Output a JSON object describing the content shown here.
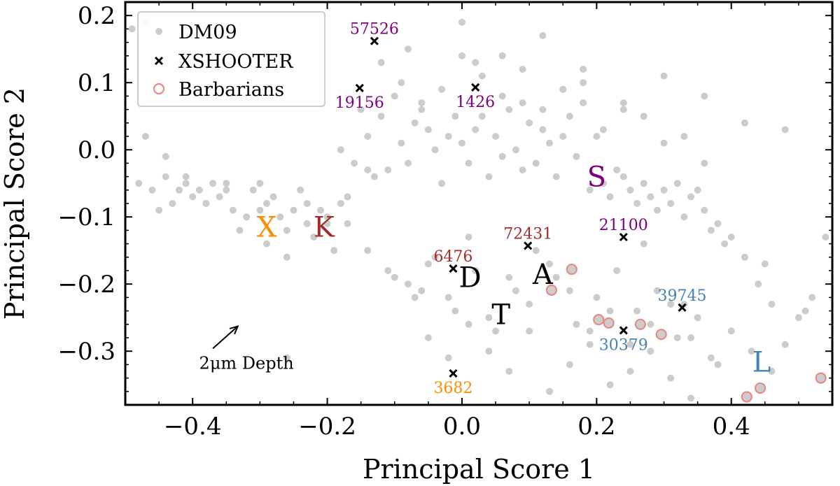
{
  "chart_data": {
    "type": "scatter",
    "xlabel": "Principal Score 1",
    "ylabel": "Principal Score 2",
    "xlim": [
      -0.5,
      0.55
    ],
    "ylim": [
      -0.38,
      0.22
    ],
    "xticks": [
      -0.4,
      -0.2,
      0.0,
      0.2,
      0.4
    ],
    "xtick_labels": [
      "−0.4",
      "−0.2",
      "0.0",
      "0.2",
      "0.4"
    ],
    "yticks": [
      -0.3,
      -0.2,
      -0.1,
      0.0,
      0.1,
      0.2
    ],
    "ytick_labels": [
      "−0.3",
      "−0.2",
      "−0.1",
      "0.0",
      "0.1",
      "0.2"
    ],
    "legend": {
      "position": "upper-left",
      "entries": [
        "DM09",
        "XSHOOTER",
        "Barbarians"
      ]
    },
    "series": [
      {
        "name": "DM09",
        "marker": "dot",
        "color": "#cccccc",
        "x": [
          -0.49,
          -0.48,
          -0.47,
          -0.46,
          -0.45,
          -0.44,
          -0.43,
          -0.42,
          -0.41,
          -0.4,
          -0.39,
          -0.38,
          -0.37,
          -0.36,
          -0.35,
          -0.34,
          -0.33,
          -0.32,
          -0.31,
          -0.3,
          -0.29,
          -0.28,
          -0.27,
          -0.26,
          -0.25,
          -0.24,
          -0.23,
          -0.22,
          -0.21,
          -0.2,
          -0.19,
          -0.18,
          -0.17,
          -0.16,
          -0.15,
          -0.14,
          -0.13,
          -0.12,
          -0.11,
          -0.1,
          -0.09,
          -0.08,
          -0.07,
          -0.06,
          -0.05,
          -0.04,
          -0.03,
          -0.02,
          -0.01,
          0.0,
          0.01,
          0.02,
          0.03,
          0.04,
          0.05,
          0.06,
          0.07,
          0.08,
          0.09,
          0.1,
          0.11,
          0.12,
          0.13,
          0.14,
          0.15,
          0.16,
          0.17,
          0.18,
          0.19,
          0.2,
          0.21,
          0.22,
          0.23,
          0.24,
          0.25,
          0.26,
          0.27,
          0.28,
          0.29,
          0.3,
          0.31,
          0.32,
          0.33,
          0.34,
          0.35,
          0.36,
          0.37,
          0.38,
          0.39,
          0.4,
          0.42,
          0.44,
          0.46,
          0.48,
          0.5,
          0.52,
          -0.47,
          -0.44,
          -0.41,
          -0.38,
          -0.35,
          -0.32,
          -0.29,
          -0.26,
          -0.23,
          -0.2,
          -0.17,
          -0.14,
          -0.11,
          -0.08,
          -0.05,
          -0.02,
          0.01,
          0.04,
          0.07,
          0.1,
          0.13,
          0.16,
          0.19,
          0.22,
          0.25,
          0.28,
          0.31,
          0.34,
          0.37,
          0.4,
          0.43,
          0.46,
          -0.12,
          -0.09,
          -0.06,
          -0.03,
          0.0,
          0.03,
          0.06,
          0.09,
          0.12,
          0.15,
          0.18,
          0.21,
          0.24,
          0.27,
          0.3,
          0.33,
          0.36,
          -0.1,
          -0.07,
          -0.04,
          -0.01,
          0.02,
          0.05,
          0.08,
          0.11,
          0.14,
          0.17,
          0.2,
          0.23,
          0.26,
          0.29,
          0.32,
          0.35,
          0.38,
          -0.05,
          -0.02,
          0.01,
          0.04,
          0.07,
          0.1,
          0.13,
          0.16,
          0.19,
          0.22,
          0.25,
          0.28,
          0.31,
          0.34,
          -0.08,
          0.0,
          0.06,
          0.12,
          0.18,
          0.24,
          0.3,
          0.36,
          0.42,
          0.48,
          0.54,
          -0.3,
          -0.26,
          -0.18,
          -0.14,
          -0.06,
          0.02,
          0.09,
          0.15,
          0.27,
          0.33,
          0.45,
          0.51
        ],
        "y": [
          0.18,
          -0.05,
          0.02,
          -0.06,
          -0.09,
          -0.04,
          -0.08,
          -0.06,
          -0.05,
          -0.07,
          -0.06,
          -0.08,
          -0.05,
          -0.07,
          -0.06,
          -0.09,
          -0.12,
          -0.1,
          -0.06,
          -0.05,
          -0.08,
          -0.07,
          -0.1,
          -0.16,
          -0.09,
          -0.06,
          -0.11,
          -0.13,
          -0.09,
          -0.1,
          -0.15,
          -0.08,
          -0.11,
          -0.02,
          0.06,
          0.02,
          -0.04,
          0.05,
          -0.03,
          0.08,
          0.01,
          -0.02,
          0.04,
          0.06,
          0.03,
          0.0,
          -0.05,
          0.02,
          0.05,
          0.01,
          -0.02,
          0.03,
          0.05,
          -0.04,
          0.02,
          -0.01,
          0.06,
          0.0,
          -0.03,
          0.04,
          -0.02,
          0.03,
          0.01,
          -0.04,
          0.02,
          0.05,
          -0.01,
          0.07,
          -0.06,
          0.02,
          -0.05,
          -0.07,
          -0.03,
          -0.04,
          -0.06,
          -0.08,
          -0.05,
          -0.07,
          -0.09,
          -0.06,
          -0.08,
          -0.05,
          -0.1,
          -0.07,
          -0.06,
          -0.09,
          -0.12,
          -0.11,
          -0.14,
          -0.13,
          -0.16,
          -0.2,
          -0.23,
          -0.29,
          -0.25,
          -0.22,
          0.19,
          -0.01,
          -0.04,
          -0.08,
          -0.05,
          -0.1,
          -0.14,
          -0.12,
          -0.08,
          -0.11,
          -0.07,
          -0.15,
          -0.18,
          -0.2,
          -0.17,
          -0.22,
          -0.13,
          -0.25,
          -0.19,
          -0.23,
          -0.17,
          -0.21,
          -0.27,
          -0.24,
          -0.29,
          -0.26,
          -0.23,
          -0.28,
          -0.31,
          -0.27,
          -0.3,
          -0.33,
          0.13,
          0.1,
          0.07,
          0.09,
          0.14,
          0.11,
          0.08,
          0.12,
          0.06,
          0.09,
          0.1,
          0.03,
          0.07,
          0.05,
          0.01,
          0.02,
          -0.02,
          -0.19,
          -0.22,
          -0.16,
          -0.24,
          -0.18,
          -0.27,
          -0.21,
          -0.15,
          -0.19,
          -0.26,
          -0.22,
          -0.18,
          -0.24,
          -0.21,
          -0.28,
          -0.25,
          -0.32,
          -0.28,
          -0.31,
          -0.26,
          -0.3,
          -0.33,
          -0.27,
          -0.36,
          -0.32,
          -0.29,
          -0.35,
          -0.33,
          -0.3,
          -0.34,
          -0.37,
          0.15,
          0.19,
          0.14,
          0.17,
          0.12,
          0.06,
          0.11,
          0.08,
          0.04,
          0.03,
          -0.13,
          -0.09,
          -0.31,
          0.0,
          -0.03,
          -0.21,
          0.13,
          0.07,
          0.09,
          -0.14,
          -0.23,
          -0.17,
          -0.24
        ]
      },
      {
        "name": "XSHOOTER",
        "marker": "x",
        "color": "#000000",
        "points": [
          {
            "id": "57526",
            "x": -0.13,
            "y": 0.162
          },
          {
            "id": "19156",
            "x": -0.152,
            "y": 0.092
          },
          {
            "id": "1426",
            "x": 0.02,
            "y": 0.093
          },
          {
            "id": "72431",
            "x": 0.098,
            "y": -0.143
          },
          {
            "id": "6476",
            "x": -0.013,
            "y": -0.177
          },
          {
            "id": "21100",
            "x": 0.24,
            "y": -0.13
          },
          {
            "id": "39745",
            "x": 0.327,
            "y": -0.235
          },
          {
            "id": "30379",
            "x": 0.24,
            "y": -0.269
          },
          {
            "id": "3682",
            "x": -0.013,
            "y": -0.333
          }
        ]
      },
      {
        "name": "Barbarians",
        "marker": "circle",
        "color": "#e88a86",
        "x": [
          0.163,
          0.133,
          0.203,
          0.218,
          0.265,
          0.296,
          0.443,
          0.423,
          0.533
        ],
        "y": [
          -0.178,
          -0.209,
          -0.253,
          -0.258,
          -0.26,
          -0.275,
          -0.355,
          -0.368,
          -0.34
        ]
      }
    ],
    "point_labels": [
      {
        "text": "57526",
        "x": -0.13,
        "y": 0.162,
        "color": "#800080",
        "anchor": "above"
      },
      {
        "text": "19156",
        "x": -0.152,
        "y": 0.092,
        "color": "#800080",
        "anchor": "below"
      },
      {
        "text": "1426",
        "x": 0.02,
        "y": 0.093,
        "color": "#800080",
        "anchor": "below"
      },
      {
        "text": "72431",
        "x": 0.098,
        "y": -0.143,
        "color": "#a52a2a",
        "anchor": "above"
      },
      {
        "text": "6476",
        "x": -0.013,
        "y": -0.177,
        "color": "#a52a2a",
        "anchor": "above"
      },
      {
        "text": "21100",
        "x": 0.24,
        "y": -0.13,
        "color": "#800080",
        "anchor": "above"
      },
      {
        "text": "39745",
        "x": 0.327,
        "y": -0.235,
        "color": "#4682b4",
        "anchor": "above"
      },
      {
        "text": "30379",
        "x": 0.24,
        "y": -0.269,
        "color": "#4682b4",
        "anchor": "below"
      },
      {
        "text": "3682",
        "x": -0.013,
        "y": -0.333,
        "color": "#ff8c00",
        "anchor": "below"
      }
    ],
    "class_labels": [
      {
        "text": "X",
        "x": -0.29,
        "y": -0.115,
        "color": "#ff8c00"
      },
      {
        "text": "K",
        "x": -0.205,
        "y": -0.115,
        "color": "#a52a2a"
      },
      {
        "text": "D",
        "x": 0.012,
        "y": -0.19,
        "color": "#000000"
      },
      {
        "text": "A",
        "x": 0.12,
        "y": -0.185,
        "color": "#000000"
      },
      {
        "text": "T",
        "x": 0.058,
        "y": -0.245,
        "color": "#000000"
      },
      {
        "text": "S",
        "x": 0.2,
        "y": -0.04,
        "color": "#800080"
      },
      {
        "text": "L",
        "x": 0.445,
        "y": -0.316,
        "color": "#4682b4"
      }
    ],
    "annotation": {
      "text": "2μm Depth",
      "x": -0.32,
      "y": -0.318,
      "arrow_from": [
        -0.37,
        -0.296
      ],
      "arrow_to": [
        -0.333,
        -0.263
      ]
    }
  }
}
